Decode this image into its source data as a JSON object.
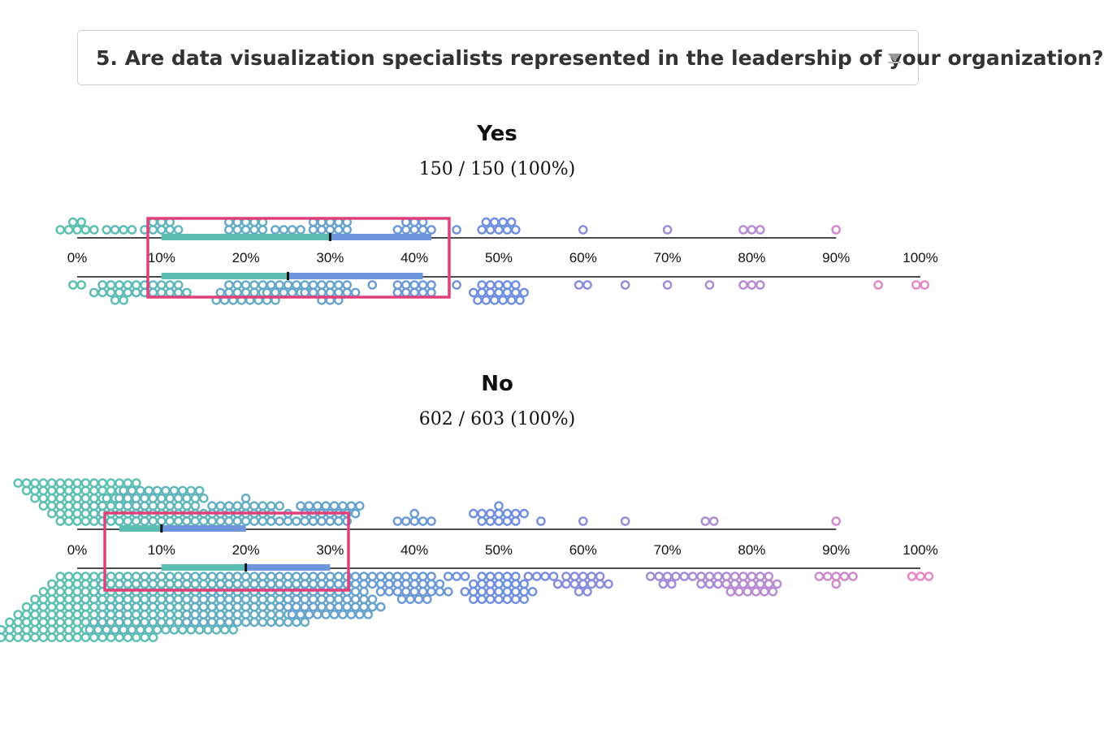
{
  "question_select": {
    "selected": "5. Are data visualization specialists represented in the leadership of your organization?",
    "arrow_icon": "triangle-down-icon"
  },
  "colors": {
    "dot_low": "#5bc0b0",
    "dot_mid": "#6f8ee0",
    "dot_high": "#e887c8",
    "iqr_low": "#5bbcb2",
    "iqr_high": "#6f96dc",
    "median": "#111111",
    "highlight": "#e0407a"
  },
  "chart_data": [
    {
      "type": "beeswarm",
      "title": "Yes",
      "subtitle": "150 / 150 (100%)",
      "x_ticks": [
        "0%",
        "10%",
        "20%",
        "30%",
        "40%",
        "50%",
        "60%",
        "70%",
        "80%",
        "90%",
        "100%"
      ],
      "xlim": [
        0,
        100
      ],
      "top_row": {
        "dist": [
          [
            0,
            7
          ],
          [
            5,
            4
          ],
          [
            10,
            8
          ],
          [
            20,
            10
          ],
          [
            25,
            4
          ],
          [
            30,
            10
          ],
          [
            40,
            8
          ],
          [
            45,
            1
          ],
          [
            50,
            9
          ],
          [
            60,
            1
          ],
          [
            70,
            1
          ],
          [
            80,
            3
          ],
          [
            90,
            1
          ]
        ],
        "iqr": [
          10,
          42
        ],
        "median": 30
      },
      "bottom_row": {
        "dist": [
          [
            0,
            2
          ],
          [
            5,
            14
          ],
          [
            10,
            12
          ],
          [
            20,
            20
          ],
          [
            25,
            11
          ],
          [
            30,
            15
          ],
          [
            35,
            1
          ],
          [
            40,
            10
          ],
          [
            45,
            1
          ],
          [
            50,
            18
          ],
          [
            60,
            2
          ],
          [
            65,
            1
          ],
          [
            70,
            1
          ],
          [
            75,
            1
          ],
          [
            80,
            3
          ],
          [
            95,
            1
          ],
          [
            100,
            2
          ]
        ],
        "iqr": [
          10,
          41
        ],
        "median": 25
      }
    },
    {
      "type": "beeswarm",
      "title": "No",
      "subtitle": "602 / 603 (100%)",
      "x_ticks": [
        "0%",
        "10%",
        "20%",
        "30%",
        "40%",
        "50%",
        "60%",
        "70%",
        "80%",
        "90%",
        "100%"
      ],
      "xlim": [
        0,
        100
      ],
      "top_row": {
        "dist": [
          [
            0,
            60
          ],
          [
            5,
            25
          ],
          [
            10,
            42
          ],
          [
            15,
            8
          ],
          [
            20,
            22
          ],
          [
            25,
            6
          ],
          [
            30,
            20
          ],
          [
            40,
            6
          ],
          [
            50,
            13
          ],
          [
            55,
            1
          ],
          [
            60,
            1
          ],
          [
            65,
            1
          ],
          [
            75,
            2
          ],
          [
            90,
            1
          ]
        ],
        "iqr": [
          5,
          20
        ],
        "median": 10
      },
      "bottom_row": {
        "dist": [
          [
            0,
            115
          ],
          [
            5,
            35
          ],
          [
            10,
            95
          ],
          [
            15,
            30
          ],
          [
            20,
            75
          ],
          [
            25,
            22
          ],
          [
            30,
            55
          ],
          [
            35,
            8
          ],
          [
            40,
            25
          ],
          [
            45,
            3
          ],
          [
            50,
            28
          ],
          [
            55,
            4
          ],
          [
            60,
            14
          ],
          [
            70,
            7
          ],
          [
            75,
            8
          ],
          [
            80,
            18
          ],
          [
            90,
            6
          ],
          [
            100,
            3
          ]
        ],
        "iqr": [
          10,
          30
        ],
        "median": 20
      }
    }
  ]
}
